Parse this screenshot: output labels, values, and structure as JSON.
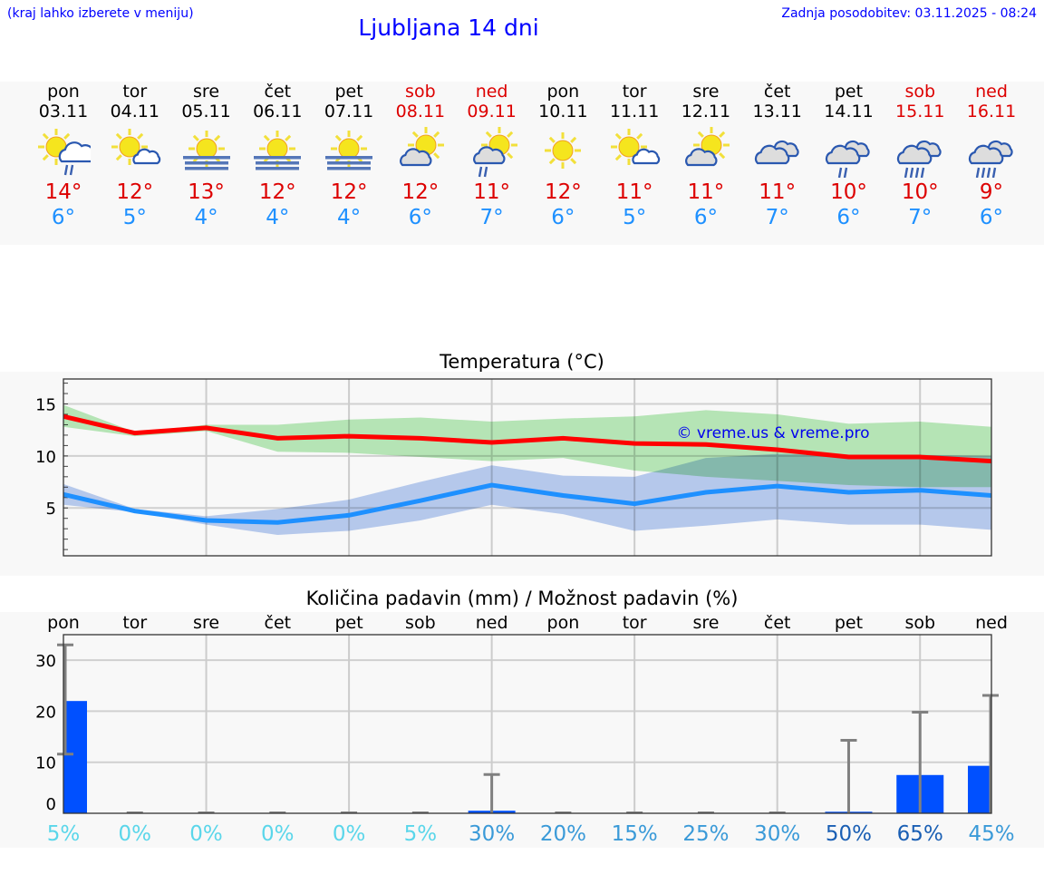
{
  "header": {
    "hint": "(kraj lahko izberete v meniju)",
    "title": "Ljubljana 14 dni",
    "updated": "Zadnja posodobitev: 03.11.2025 - 08:24"
  },
  "days": [
    {
      "name": "pon",
      "date": "03.11",
      "weekend": false,
      "icon": "sun-cloud-rain-icon",
      "max": "14°",
      "min": "6°"
    },
    {
      "name": "tor",
      "date": "04.11",
      "weekend": false,
      "icon": "sun-small-cloud-icon",
      "max": "12°",
      "min": "5°"
    },
    {
      "name": "sre",
      "date": "05.11",
      "weekend": false,
      "icon": "sun-fog-icon",
      "max": "13°",
      "min": "4°"
    },
    {
      "name": "čet",
      "date": "06.11",
      "weekend": false,
      "icon": "sun-fog-icon",
      "max": "12°",
      "min": "4°"
    },
    {
      "name": "pet",
      "date": "07.11",
      "weekend": false,
      "icon": "sun-fog-icon",
      "max": "12°",
      "min": "4°"
    },
    {
      "name": "sob",
      "date": "08.11",
      "weekend": true,
      "icon": "sun-grey-cloud-icon",
      "max": "12°",
      "min": "6°"
    },
    {
      "name": "ned",
      "date": "09.11",
      "weekend": true,
      "icon": "sun-grey-cloud-rain-icon",
      "max": "11°",
      "min": "7°"
    },
    {
      "name": "pon",
      "date": "10.11",
      "weekend": false,
      "icon": "sun-icon",
      "max": "12°",
      "min": "6°"
    },
    {
      "name": "tor",
      "date": "11.11",
      "weekend": false,
      "icon": "sun-small-cloud-icon",
      "max": "11°",
      "min": "5°"
    },
    {
      "name": "sre",
      "date": "12.11",
      "weekend": false,
      "icon": "sun-grey-cloud-icon",
      "max": "11°",
      "min": "6°"
    },
    {
      "name": "čet",
      "date": "13.11",
      "weekend": false,
      "icon": "clouds-icon",
      "max": "11°",
      "min": "7°"
    },
    {
      "name": "pet",
      "date": "14.11",
      "weekend": false,
      "icon": "clouds-light-rain-icon",
      "max": "10°",
      "min": "6°"
    },
    {
      "name": "sob",
      "date": "15.11",
      "weekend": true,
      "icon": "clouds-rain-icon",
      "max": "10°",
      "min": "7°"
    },
    {
      "name": "ned",
      "date": "16.11",
      "weekend": true,
      "icon": "clouds-rain-icon",
      "max": "9°",
      "min": "6°"
    }
  ],
  "chart_data": [
    {
      "type": "line",
      "title": "Temperatura (°C)",
      "ylim": [
        0.4,
        17.4
      ],
      "yticks": [
        5,
        10,
        15
      ],
      "grid": true,
      "watermark": "© vreme.us & vreme.pro",
      "colors": {
        "max": "#ff0000",
        "min": "#1e90ff",
        "max_band": "#aee8ae",
        "min_band": "#aec6f0"
      },
      "x": [
        "03.11",
        "04.11",
        "05.11",
        "06.11",
        "07.11",
        "08.11",
        "09.11",
        "10.11",
        "11.11",
        "12.11",
        "13.11",
        "14.11",
        "15.11",
        "16.11"
      ],
      "series": [
        {
          "key": "max",
          "values": [
            13.8,
            12.2,
            12.7,
            11.7,
            11.9,
            11.7,
            11.3,
            11.7,
            11.2,
            11.1,
            10.6,
            9.9,
            9.9,
            9.5
          ],
          "band_high": [
            14.9,
            12.3,
            13.0,
            13.0,
            13.5,
            13.7,
            13.3,
            13.6,
            13.8,
            14.4,
            14.0,
            13.1,
            13.3,
            12.8
          ],
          "band_low": [
            12.8,
            11.9,
            12.4,
            10.4,
            10.3,
            9.9,
            9.5,
            9.8,
            8.6,
            8.0,
            7.6,
            7.2,
            7.0,
            7.0
          ]
        },
        {
          "key": "min",
          "values": [
            6.3,
            4.7,
            3.8,
            3.6,
            4.3,
            5.7,
            7.2,
            6.2,
            5.4,
            6.5,
            7.1,
            6.5,
            6.7,
            6.2
          ],
          "band_high": [
            7.3,
            4.9,
            4.2,
            4.9,
            5.8,
            7.5,
            9.1,
            8.1,
            8.0,
            9.8,
            10.2,
            10.1,
            10.1,
            10.0
          ],
          "band_low": [
            5.3,
            4.6,
            3.4,
            2.4,
            2.8,
            3.8,
            5.3,
            4.4,
            2.8,
            3.3,
            3.9,
            3.4,
            3.4,
            2.9
          ]
        }
      ]
    },
    {
      "type": "bar",
      "title": "Količina padavin (mm) / Možnost padavin (%)",
      "ylim": [
        0,
        35
      ],
      "yticks": [
        0,
        10,
        20,
        30
      ],
      "grid": true,
      "colors": {
        "bar": "#0050ff",
        "error": "#808080"
      },
      "categories": [
        "pon",
        "tor",
        "sre",
        "čet",
        "pet",
        "sob",
        "ned",
        "pon",
        "tor",
        "sre",
        "čet",
        "pet",
        "sob",
        "ned"
      ],
      "values": [
        22,
        0,
        0,
        0,
        0,
        0,
        0.5,
        0,
        0,
        0,
        0,
        0.3,
        7.5,
        9.3
      ],
      "error_low": [
        11.6,
        0,
        0,
        0,
        0,
        0,
        0,
        0,
        0,
        0,
        0,
        0,
        0,
        0
      ],
      "error_high": [
        33,
        0,
        0,
        0,
        0,
        0,
        7.6,
        0,
        0,
        0,
        0,
        14.3,
        19.8,
        23.1
      ],
      "probability": [
        "5%",
        "0%",
        "0%",
        "0%",
        "0%",
        "5%",
        "30%",
        "20%",
        "15%",
        "25%",
        "30%",
        "50%",
        "65%",
        "45%"
      ],
      "probability_colors": [
        "#5ad6ea",
        "#5ad6ea",
        "#5ad6ea",
        "#5ad6ea",
        "#5ad6ea",
        "#5ad6ea",
        "#3a9ad8",
        "#3a9ad8",
        "#3a9ad8",
        "#3a9ad8",
        "#3a9ad8",
        "#1a5fb4",
        "#1a5fb4",
        "#3a9ad8"
      ]
    }
  ]
}
